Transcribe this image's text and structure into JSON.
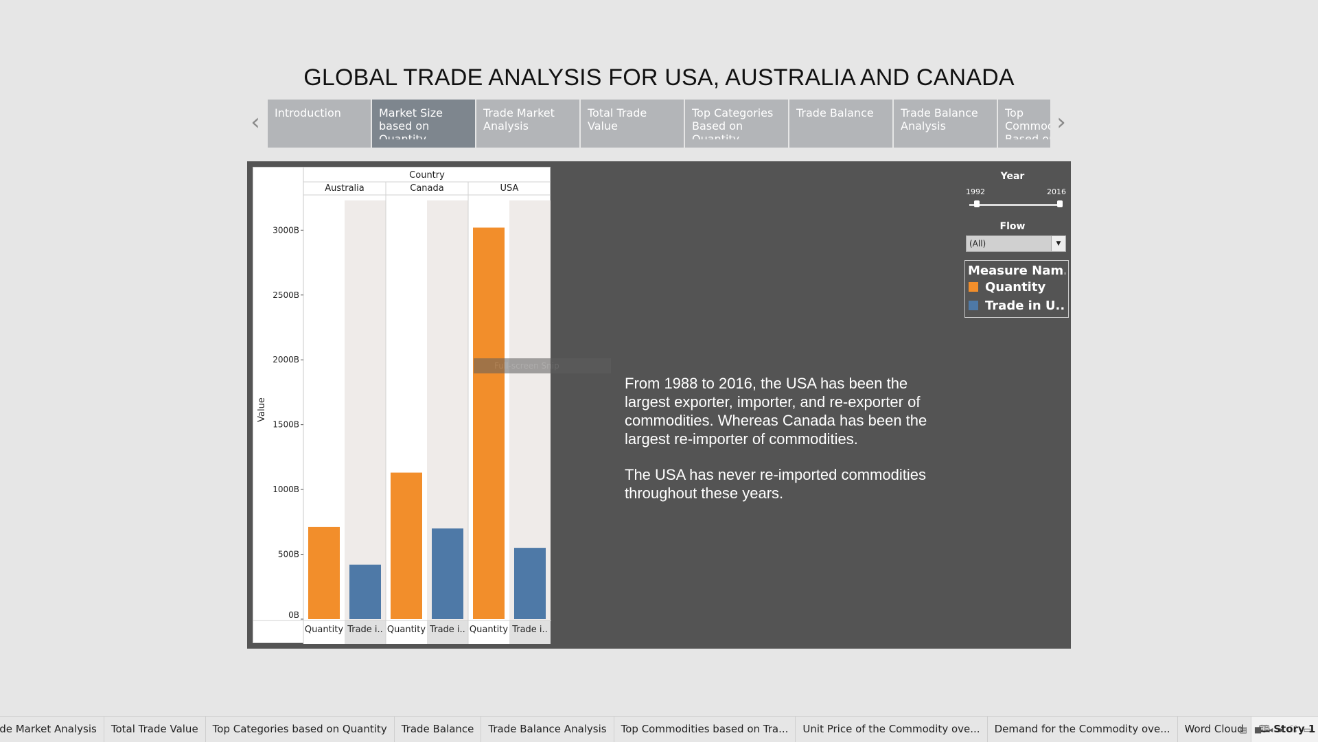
{
  "story": {
    "title": "GLOBAL TRADE ANALYSIS FOR USA, AUSTRALIA AND CANADA",
    "tabs": [
      {
        "label": "Introduction",
        "active": false
      },
      {
        "label": "Market Size based on Quantity",
        "active": true
      },
      {
        "label": "Trade Market Analysis",
        "active": false
      },
      {
        "label": "Total Trade Value",
        "active": false
      },
      {
        "label": "Top Categories Based on Quantity",
        "active": false
      },
      {
        "label": "Trade Balance",
        "active": false
      },
      {
        "label": "Trade Balance Analysis",
        "active": false
      },
      {
        "label": "Top Commodities Based on Value",
        "active": false
      }
    ],
    "prev_icon": "chevron-left-icon",
    "next_icon": "chevron-right-icon"
  },
  "chart_data": {
    "type": "bar",
    "column_header": "Country",
    "countries": [
      "Australia",
      "Canada",
      "USA"
    ],
    "measure_labels": [
      "Quantity",
      "Trade i.."
    ],
    "ylabel": "Value",
    "ylim": [
      0,
      3150
    ],
    "y_ticks": [
      {
        "v": 0,
        "label": "0B"
      },
      {
        "v": 500,
        "label": "500B"
      },
      {
        "v": 1000,
        "label": "1000B"
      },
      {
        "v": 1500,
        "label": "1500B"
      },
      {
        "v": 2000,
        "label": "2000B"
      },
      {
        "v": 2500,
        "label": "2500B"
      },
      {
        "v": 3000,
        "label": "3000B"
      }
    ],
    "series": [
      {
        "name": "Quantity",
        "color": "#f28e2b",
        "values": [
          710,
          1130,
          3020
        ]
      },
      {
        "name": "Trade in U..",
        "color": "#4e79a7",
        "values": [
          420,
          700,
          550
        ]
      }
    ],
    "grid": false
  },
  "tooltip_ghost": "Full-screen Snip",
  "narrative": {
    "p1": "From 1988 to 2016, the USA has been the largest exporter, importer, and re-exporter of commodities. Whereas Canada has been the largest re-importer of commodities.",
    "p2": "The USA has never re-imported commodities throughout these years."
  },
  "filters": {
    "year": {
      "title": "Year",
      "min": "1992",
      "max": "2016",
      "range_start_fraction": 0.08,
      "range_end_fraction": 1.0
    },
    "flow": {
      "title": "Flow",
      "value": "(All)"
    }
  },
  "legend": {
    "title": "Measure Nam..",
    "items": [
      {
        "label": "Quantity",
        "color": "#f28e2b"
      },
      {
        "label": "Trade in U..",
        "color": "#4e79a7"
      }
    ]
  },
  "sheet_tabs": [
    {
      "label": "ade Market Analysis",
      "active": false
    },
    {
      "label": "Total Trade Value",
      "active": false
    },
    {
      "label": "Top Categories based on Quantity",
      "active": false
    },
    {
      "label": "Trade Balance",
      "active": false
    },
    {
      "label": "Trade Balance Analysis",
      "active": false
    },
    {
      "label": "Top Commodities based on Tra...",
      "active": false
    },
    {
      "label": "Unit Price of the Commodity ove...",
      "active": false
    },
    {
      "label": "Demand for the Commodity ove...",
      "active": false
    },
    {
      "label": "Word Cloud",
      "active": false
    },
    {
      "label": "Story 1",
      "active": true
    }
  ]
}
